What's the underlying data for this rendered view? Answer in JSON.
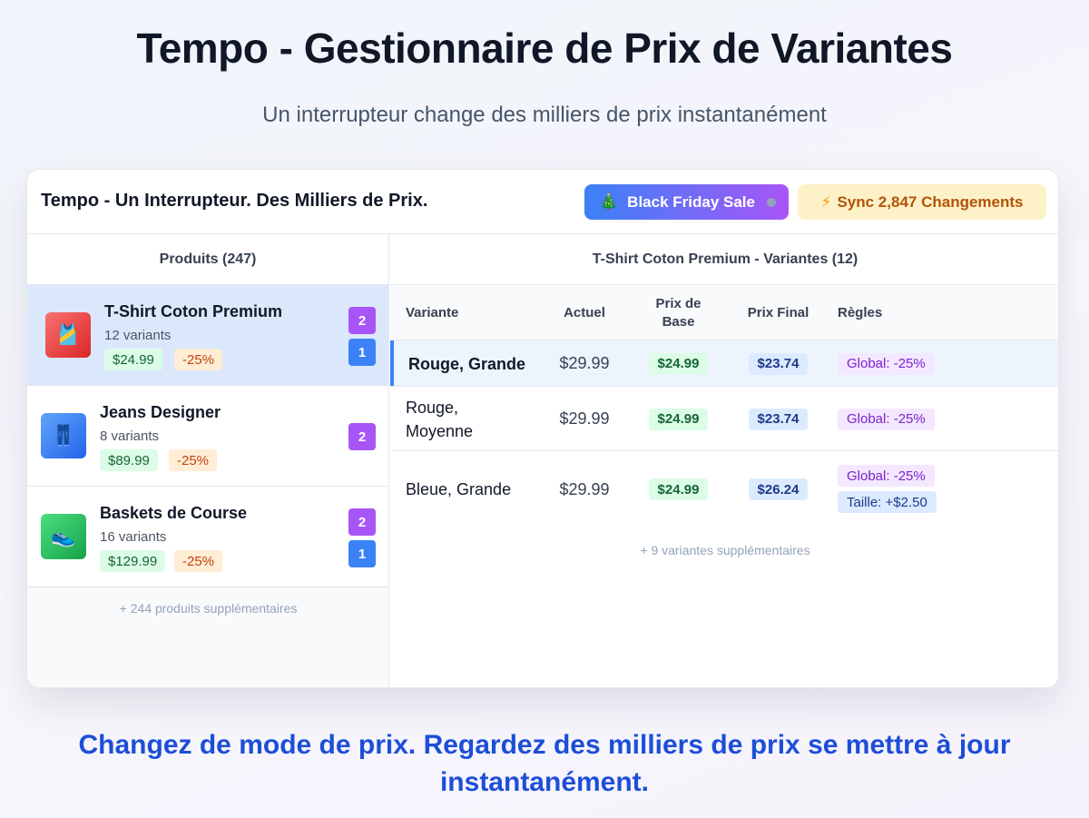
{
  "hero": {
    "title": "Tempo - Gestionnaire de Prix de Variantes",
    "subtitle": "Un interrupteur change des milliers de prix instantanément"
  },
  "app": {
    "title": "Tempo - Un Interrupteur. Des Milliers de Prix.",
    "mode_toggle": {
      "icon": "🎄",
      "label": "Black Friday Sale",
      "gradient": [
        "#3b82f6",
        "#a855f7"
      ]
    },
    "sync_button": {
      "icon": "⚡",
      "label": "Sync 2,847 Changements"
    }
  },
  "products_panel": {
    "header": "Produits (247)",
    "items": [
      {
        "name": "T-Shirt Coton Premium",
        "variants": "12 variants",
        "price": "$24.99",
        "discount": "-25%",
        "icon": "🎽",
        "badges": [
          "2",
          "1"
        ],
        "selected": true
      },
      {
        "name": "Jeans Designer",
        "variants": "8 variants",
        "price": "$89.99",
        "discount": "-25%",
        "icon": "👖",
        "badges": [
          "2"
        ],
        "selected": false
      },
      {
        "name": "Baskets de Course",
        "variants": "16 variants",
        "price": "$129.99",
        "discount": "-25%",
        "icon": "👟",
        "badges": [
          "2",
          "1"
        ],
        "selected": false
      }
    ],
    "more": "+ 244 produits supplémentaires"
  },
  "variants_panel": {
    "header": "T-Shirt Coton Premium - Variantes (12)",
    "columns": {
      "variant": "Variante",
      "current": "Actuel",
      "base_line1": "Prix de",
      "base_line2": "Base",
      "final": "Prix Final",
      "rules": "Règles"
    },
    "rows": [
      {
        "name": "Rouge, Grande",
        "current": "$29.99",
        "base": "$24.99",
        "final": "$23.74",
        "rules": [
          "Global: -25%"
        ]
      },
      {
        "name_line1": "Rouge,",
        "name_line2": "Moyenne",
        "current": "$29.99",
        "base": "$24.99",
        "final": "$23.74",
        "rules": [
          "Global: -25%"
        ]
      },
      {
        "name": "Bleue, Grande",
        "current": "$29.99",
        "base": "$24.99",
        "final": "$26.24",
        "rules": [
          "Global: -25%",
          "Taille: +$2.50"
        ]
      }
    ],
    "more": "+ 9 variantes supplémentaires"
  },
  "footer": {
    "tagline": "Changez de mode de prix. Regardez des milliers de prix se mettre à jour instantanément."
  },
  "colors": {
    "accent_blue": "#3b82f6",
    "accent_purple": "#a855f7",
    "tagline_blue": "#1d4ed8",
    "selection_bg": "#dbe8fb"
  }
}
